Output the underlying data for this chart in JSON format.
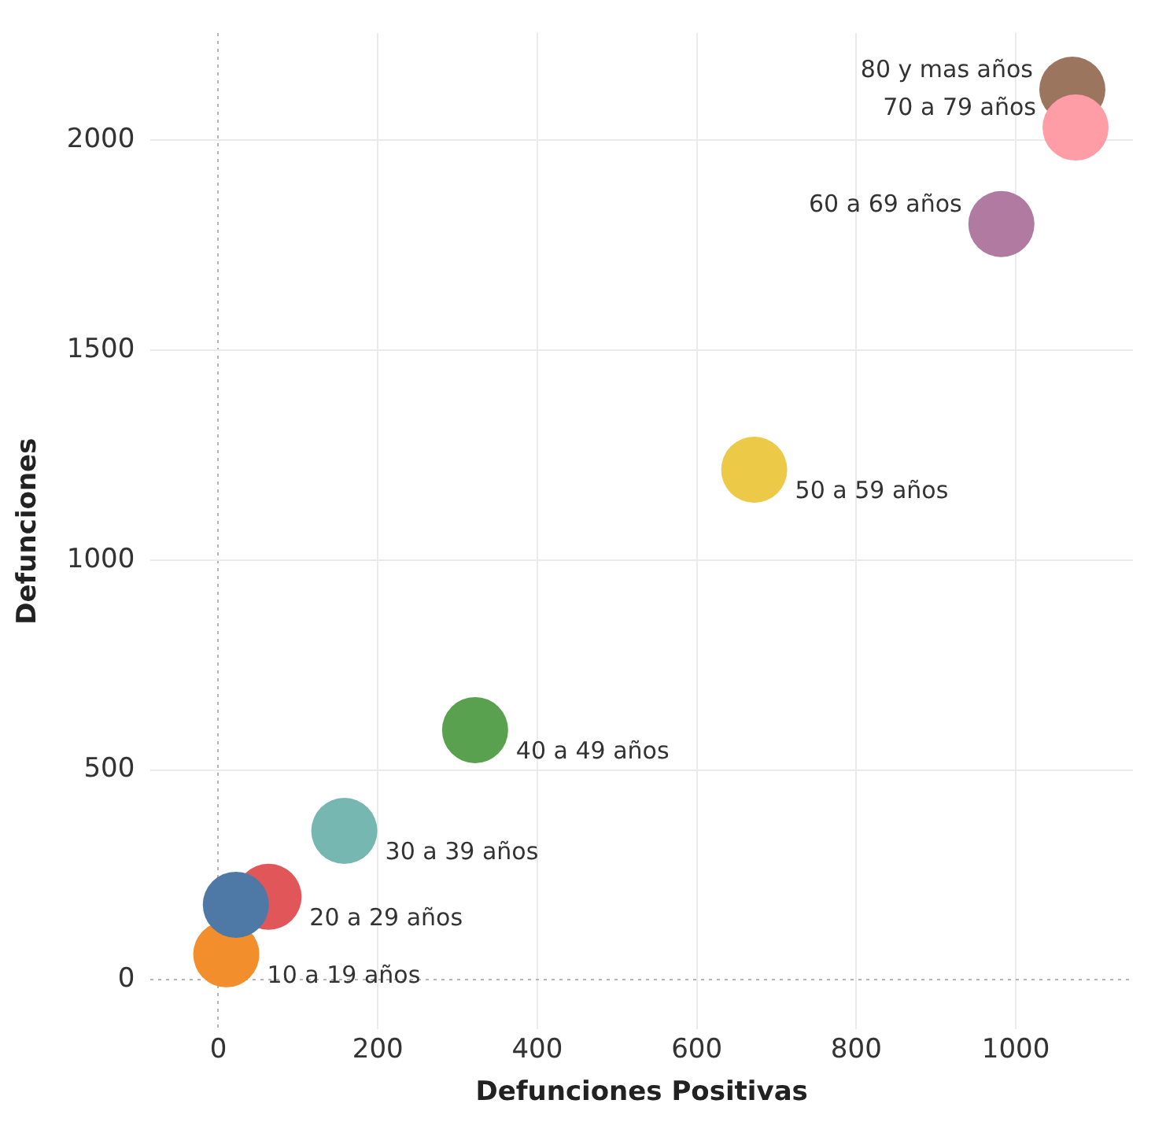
{
  "chart_data": {
    "type": "scatter",
    "xlabel": "Defunciones Positivas",
    "ylabel": "Defunciones",
    "xlim": [
      -85,
      1147
    ],
    "ylim": [
      -118,
      2255
    ],
    "xticks": [
      0,
      200,
      400,
      600,
      800,
      1000
    ],
    "yticks": [
      0,
      500,
      1000,
      1500,
      2000
    ],
    "grid": true,
    "legend": false,
    "marker": "circle",
    "series": [
      {
        "name": "80 y mas años",
        "color": "#9c755f",
        "x": [
          1071
        ],
        "values": [
          2120
        ]
      },
      {
        "name": "70 a 79 años",
        "color": "#ff9da7",
        "x": [
          1075
        ],
        "values": [
          2030
        ]
      },
      {
        "name": "60 a 69 años",
        "color": "#b07aa1",
        "x": [
          982
        ],
        "values": [
          1800
        ]
      },
      {
        "name": "50 a 59 años",
        "color": "#edc948",
        "x": [
          672
        ],
        "values": [
          1215
        ]
      },
      {
        "name": "40 a 49 años",
        "color": "#59a14f",
        "x": [
          322
        ],
        "values": [
          595
        ]
      },
      {
        "name": "30 a 39 años",
        "color": "#76b7b2",
        "x": [
          158
        ],
        "values": [
          355
        ]
      },
      {
        "name": "20 a 29 años",
        "color": "#e15759",
        "x": [
          63
        ],
        "values": [
          198
        ]
      },
      {
        "name": "10 a 19 años",
        "color": "#f28e2b",
        "x": [
          10
        ],
        "values": [
          61
        ]
      },
      {
        "color": "#4e79a7",
        "x": [
          22
        ],
        "values": [
          179
        ]
      }
    ]
  }
}
